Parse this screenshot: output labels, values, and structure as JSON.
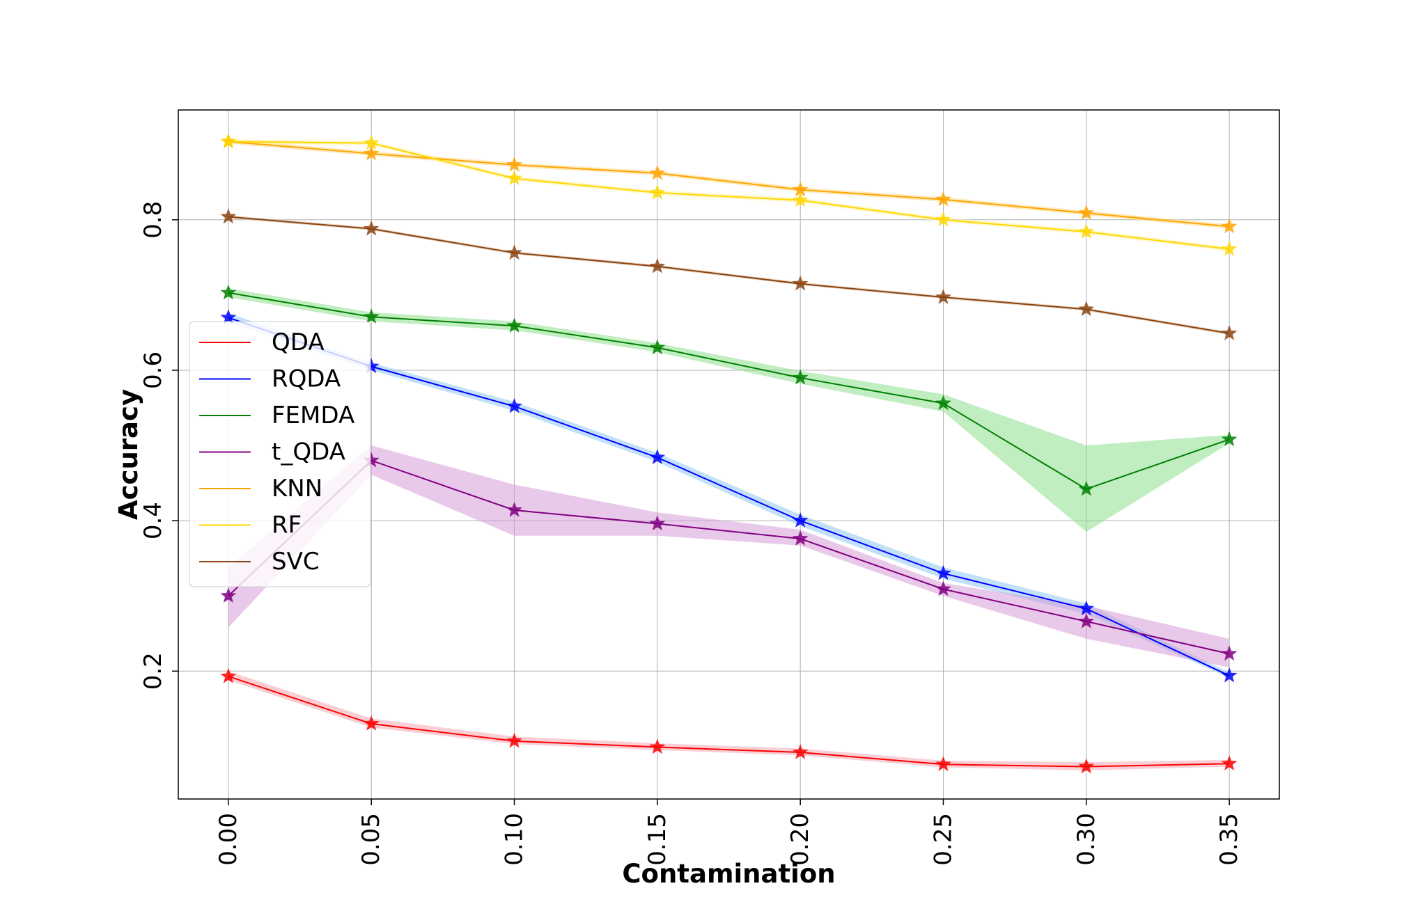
{
  "chart_data": {
    "type": "line",
    "title": "",
    "xlabel": "Contamination",
    "ylabel": "Accuracy",
    "x": [
      0.0,
      0.05,
      0.1,
      0.15,
      0.2,
      0.25,
      0.3,
      0.35
    ],
    "x_tick_labels": [
      "0.00",
      "0.05",
      "0.10",
      "0.15",
      "0.20",
      "0.25",
      "0.30",
      "0.35"
    ],
    "y_ticks": [
      0.2,
      0.4,
      0.6,
      0.8
    ],
    "y_tick_labels": [
      "0.2",
      "0.4",
      "0.6",
      "0.8"
    ],
    "xlim": [
      -0.0175,
      0.3675
    ],
    "ylim": [
      0.03,
      0.946
    ],
    "grid": true,
    "legend_position": "center-left",
    "marker": "star",
    "series": [
      {
        "name": "QDA",
        "color": "#ff0000",
        "band_color": "#f4a6b0",
        "values": [
          0.193,
          0.13,
          0.107,
          0.099,
          0.092,
          0.076,
          0.073,
          0.077
        ],
        "lower": [
          0.188,
          0.125,
          0.103,
          0.095,
          0.088,
          0.072,
          0.068,
          0.073
        ],
        "upper": [
          0.2,
          0.137,
          0.113,
          0.104,
          0.097,
          0.081,
          0.079,
          0.082
        ]
      },
      {
        "name": "RQDA",
        "color": "#0000ff",
        "band_color": "#8ec9f5",
        "values": [
          0.67,
          0.605,
          0.552,
          0.484,
          0.4,
          0.33,
          0.283,
          0.194
        ],
        "lower": [
          0.664,
          0.6,
          0.546,
          0.478,
          0.393,
          0.323,
          0.276,
          0.191
        ],
        "upper": [
          0.676,
          0.61,
          0.558,
          0.49,
          0.408,
          0.338,
          0.29,
          0.198
        ]
      },
      {
        "name": "FEMDA",
        "color": "#008000",
        "band_color": "#8ee08e",
        "values": [
          0.703,
          0.671,
          0.659,
          0.63,
          0.59,
          0.556,
          0.442,
          0.508
        ],
        "lower": [
          0.697,
          0.665,
          0.653,
          0.624,
          0.582,
          0.545,
          0.385,
          0.503
        ],
        "upper": [
          0.709,
          0.677,
          0.665,
          0.636,
          0.599,
          0.568,
          0.5,
          0.514
        ]
      },
      {
        "name": "t_QDA",
        "color": "#800080",
        "band_color": "#d79cd7",
        "values": [
          0.3,
          0.48,
          0.414,
          0.396,
          0.376,
          0.309,
          0.266,
          0.223
        ],
        "lower": [
          0.258,
          0.461,
          0.38,
          0.38,
          0.367,
          0.3,
          0.243,
          0.205
        ],
        "upper": [
          0.338,
          0.5,
          0.448,
          0.411,
          0.388,
          0.317,
          0.287,
          0.243
        ]
      },
      {
        "name": "KNN",
        "color": "#ffa500",
        "band_color": "#ffd88a",
        "values": [
          0.904,
          0.888,
          0.873,
          0.862,
          0.84,
          0.827,
          0.809,
          0.791
        ],
        "lower": [
          0.901,
          0.885,
          0.87,
          0.859,
          0.837,
          0.824,
          0.806,
          0.788
        ],
        "upper": [
          0.907,
          0.891,
          0.876,
          0.865,
          0.843,
          0.83,
          0.812,
          0.794
        ]
      },
      {
        "name": "RF",
        "color": "#ffd700",
        "band_color": "#fff0a0",
        "values": [
          0.904,
          0.902,
          0.855,
          0.836,
          0.826,
          0.8,
          0.784,
          0.761
        ],
        "lower": [
          0.901,
          0.899,
          0.852,
          0.833,
          0.823,
          0.797,
          0.781,
          0.758
        ],
        "upper": [
          0.907,
          0.905,
          0.858,
          0.839,
          0.829,
          0.803,
          0.787,
          0.764
        ]
      },
      {
        "name": "SVC",
        "color": "#8b4513",
        "band_color": "#d9b08c",
        "values": [
          0.804,
          0.788,
          0.756,
          0.738,
          0.715,
          0.697,
          0.681,
          0.649
        ],
        "lower": [
          0.802,
          0.786,
          0.754,
          0.736,
          0.713,
          0.695,
          0.679,
          0.647
        ],
        "upper": [
          0.806,
          0.79,
          0.758,
          0.74,
          0.717,
          0.699,
          0.683,
          0.651
        ]
      }
    ]
  }
}
